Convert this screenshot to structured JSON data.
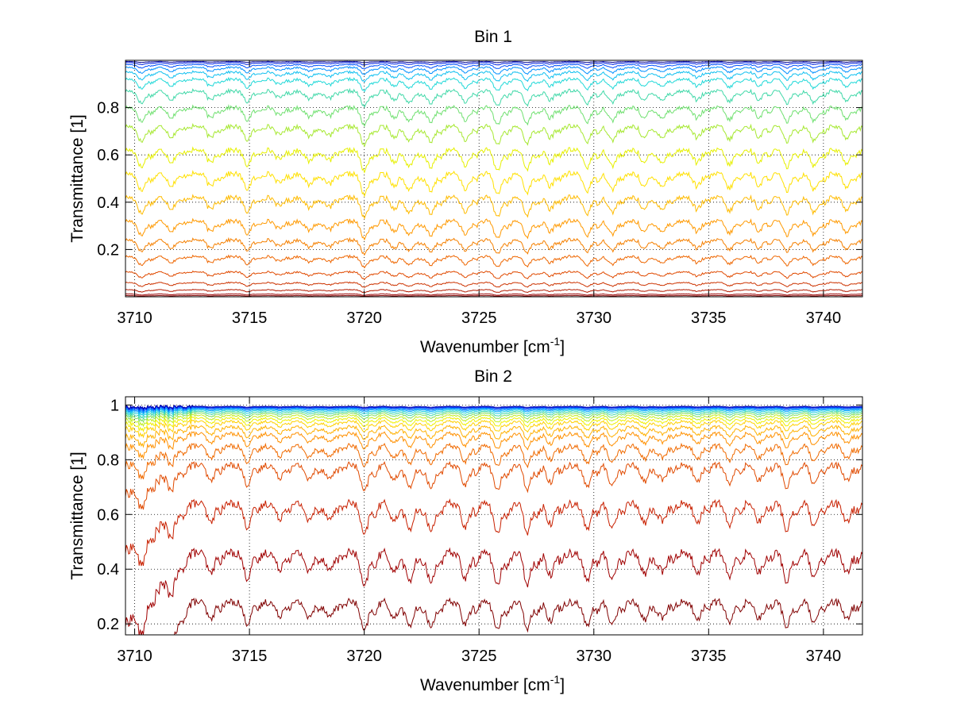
{
  "figure": {
    "panels": [
      {
        "title": "Bin 1",
        "xlabel": "Wavenumber [cm",
        "xlabel_sup": "-1",
        "xlabel_end": "]",
        "ylabel": "Transmittance [1]"
      },
      {
        "title": "Bin 2",
        "xlabel": "Wavenumber [cm",
        "xlabel_sup": "-1",
        "xlabel_end": "]",
        "ylabel": "Transmittance [1]"
      }
    ]
  },
  "chart_data": [
    {
      "type": "line",
      "title": "Bin 1",
      "xlabel": "Wavenumber [cm-1]",
      "ylabel": "Transmittance [1]",
      "xlim": [
        3709.6,
        3741.7
      ],
      "ylim": [
        0.0,
        1.0
      ],
      "xticks": [
        3710,
        3715,
        3720,
        3725,
        3730,
        3735,
        3740
      ],
      "yticks": [
        0.2,
        0.4,
        0.6,
        0.8
      ],
      "xtick_labels": [
        "3710",
        "3715",
        "3720",
        "3725",
        "3730",
        "3735",
        "3740"
      ],
      "ytick_labels": [
        "0.2",
        "0.4",
        "0.6",
        "0.8"
      ],
      "grid": true,
      "grid_style": "dotted",
      "colormap": "jet (red = lowest transmittance, blue = highest)",
      "absorption_lines": [
        3710.3,
        3711.6,
        3713.3,
        3714.9,
        3716.3,
        3717.6,
        3718.5,
        3720.0,
        3721.3,
        3722.0,
        3722.9,
        3724.4,
        3725.8,
        3727.1,
        3728.1,
        3729.7,
        3730.8,
        3732.2,
        3733.0,
        3734.5,
        3735.9,
        3737.2,
        3738.4,
        3739.6,
        3741.0
      ],
      "line_strength": [
        0.8,
        0.55,
        0.6,
        0.7,
        0.45,
        0.55,
        0.5,
        1.0,
        0.55,
        0.75,
        0.85,
        0.75,
        0.95,
        0.85,
        0.6,
        0.8,
        0.75,
        0.6,
        0.55,
        0.6,
        0.7,
        0.55,
        0.8,
        0.75,
        0.6
      ],
      "series": [
        {
          "base": 0.005,
          "depth": 0.003,
          "color": "#800000"
        },
        {
          "base": 0.012,
          "depth": 0.006,
          "color": "#990000"
        },
        {
          "base": 0.03,
          "depth": 0.012,
          "color": "#b31a00"
        },
        {
          "base": 0.06,
          "depth": 0.02,
          "color": "#cc3300"
        },
        {
          "base": 0.105,
          "depth": 0.03,
          "color": "#e04a00"
        },
        {
          "base": 0.17,
          "depth": 0.045,
          "color": "#ee6600"
        },
        {
          "base": 0.24,
          "depth": 0.06,
          "color": "#f58000"
        },
        {
          "base": 0.32,
          "depth": 0.075,
          "color": "#ff9900"
        },
        {
          "base": 0.42,
          "depth": 0.085,
          "color": "#ffbb00"
        },
        {
          "base": 0.52,
          "depth": 0.09,
          "color": "#ffe000"
        },
        {
          "base": 0.62,
          "depth": 0.09,
          "color": "#e6f000"
        },
        {
          "base": 0.72,
          "depth": 0.08,
          "color": "#a6e830"
        },
        {
          "base": 0.8,
          "depth": 0.075,
          "color": "#70e070"
        },
        {
          "base": 0.87,
          "depth": 0.065,
          "color": "#40d8a8"
        },
        {
          "base": 0.92,
          "depth": 0.05,
          "color": "#20d8d8"
        },
        {
          "base": 0.95,
          "depth": 0.04,
          "color": "#10c0f0"
        },
        {
          "base": 0.97,
          "depth": 0.03,
          "color": "#0090ff"
        },
        {
          "base": 0.982,
          "depth": 0.018,
          "color": "#0050ff"
        },
        {
          "base": 0.99,
          "depth": 0.01,
          "color": "#0020e0"
        },
        {
          "base": 0.995,
          "depth": 0.005,
          "color": "#00008f"
        }
      ]
    },
    {
      "type": "line",
      "title": "Bin 2",
      "xlabel": "Wavenumber [cm-1]",
      "ylabel": "Transmittance [1]",
      "xlim": [
        3709.6,
        3741.7
      ],
      "ylim": [
        0.16,
        1.03
      ],
      "xticks": [
        3710,
        3715,
        3720,
        3725,
        3730,
        3735,
        3740
      ],
      "yticks": [
        0.2,
        0.4,
        0.6,
        0.8,
        1
      ],
      "xtick_labels": [
        "3710",
        "3715",
        "3720",
        "3725",
        "3730",
        "3735",
        "3740"
      ],
      "ytick_labels": [
        "0.2",
        "0.4",
        "0.6",
        "0.8",
        "1"
      ],
      "grid": true,
      "grid_style": "dotted",
      "colormap": "jet (red = lowest transmittance, blue = highest)",
      "absorption_lines": [
        3710.3,
        3711.6,
        3713.3,
        3714.9,
        3716.3,
        3717.6,
        3718.5,
        3720.0,
        3721.3,
        3722.0,
        3722.9,
        3724.4,
        3725.8,
        3727.1,
        3728.1,
        3729.7,
        3730.8,
        3732.2,
        3733.0,
        3734.5,
        3735.9,
        3737.2,
        3738.4,
        3739.6,
        3741.0
      ],
      "line_strength": [
        0.8,
        0.55,
        0.6,
        0.7,
        0.45,
        0.55,
        0.5,
        1.0,
        0.55,
        0.75,
        0.85,
        0.75,
        0.95,
        0.85,
        0.6,
        0.8,
        0.75,
        0.6,
        0.55,
        0.6,
        0.7,
        0.55,
        0.8,
        0.75,
        0.6
      ],
      "series": [
        {
          "base": 0.28,
          "depth": 0.11,
          "color": "#800000"
        },
        {
          "base": 0.46,
          "depth": 0.13,
          "color": "#a00000"
        },
        {
          "base": 0.64,
          "depth": 0.12,
          "color": "#c82000"
        },
        {
          "base": 0.78,
          "depth": 0.1,
          "color": "#e04a00"
        },
        {
          "base": 0.85,
          "depth": 0.08,
          "color": "#f06a00"
        },
        {
          "base": 0.895,
          "depth": 0.06,
          "color": "#ff9000"
        },
        {
          "base": 0.92,
          "depth": 0.05,
          "color": "#ffb000"
        },
        {
          "base": 0.94,
          "depth": 0.04,
          "color": "#ffd000"
        },
        {
          "base": 0.952,
          "depth": 0.033,
          "color": "#f0f000"
        },
        {
          "base": 0.962,
          "depth": 0.027,
          "color": "#c0ee20"
        },
        {
          "base": 0.97,
          "depth": 0.022,
          "color": "#80e060"
        },
        {
          "base": 0.976,
          "depth": 0.018,
          "color": "#40d8a8"
        },
        {
          "base": 0.981,
          "depth": 0.014,
          "color": "#20d0e0"
        },
        {
          "base": 0.985,
          "depth": 0.011,
          "color": "#10b0ff"
        },
        {
          "base": 0.988,
          "depth": 0.009,
          "color": "#0080ff"
        },
        {
          "base": 0.991,
          "depth": 0.007,
          "color": "#0050ff"
        },
        {
          "base": 0.993,
          "depth": 0.005,
          "color": "#0020e0"
        },
        {
          "base": 0.995,
          "depth": 0.004,
          "color": "#0000b0"
        }
      ]
    }
  ]
}
